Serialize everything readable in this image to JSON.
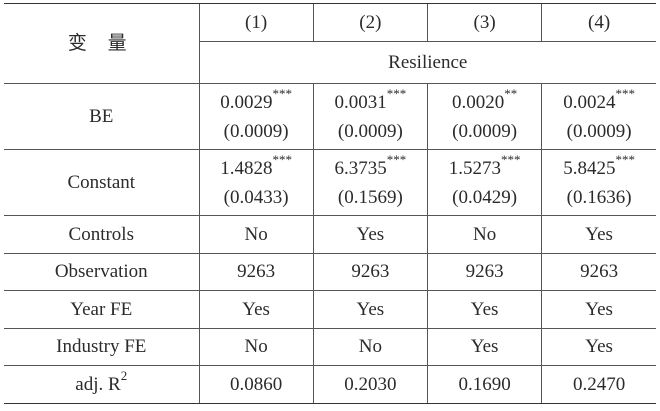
{
  "table": {
    "variable_header": "变 量",
    "column_numbers": [
      "(1)",
      "(2)",
      "(3)",
      "(4)"
    ],
    "dependent_variable": "Resilience",
    "rows": [
      {
        "label": "BE",
        "cells": [
          {
            "coef": "0.0029",
            "stars": "***",
            "se": "(0.0009)"
          },
          {
            "coef": "0.0031",
            "stars": "***",
            "se": "(0.0009)"
          },
          {
            "coef": "0.0020",
            "stars": "**",
            "se": "(0.0009)"
          },
          {
            "coef": "0.0024",
            "stars": "***",
            "se": "(0.0009)"
          }
        ]
      },
      {
        "label": "Constant",
        "cells": [
          {
            "coef": "1.4828",
            "stars": "***",
            "se": "(0.0433)"
          },
          {
            "coef": "6.3735",
            "stars": "***",
            "se": "(0.1569)"
          },
          {
            "coef": "1.5273",
            "stars": "***",
            "se": "(0.0429)"
          },
          {
            "coef": "5.8425",
            "stars": "***",
            "se": "(0.1636)"
          }
        ]
      }
    ],
    "simple_rows": [
      {
        "label": "Controls",
        "values": [
          "No",
          "Yes",
          "No",
          "Yes"
        ]
      },
      {
        "label": "Observation",
        "values": [
          "9263",
          "9263",
          "9263",
          "9263"
        ]
      },
      {
        "label": "Year FE",
        "values": [
          "Yes",
          "Yes",
          "Yes",
          "Yes"
        ]
      },
      {
        "label": "Industry FE",
        "values": [
          "No",
          "No",
          "Yes",
          "Yes"
        ]
      }
    ],
    "r2_label": "adj. R",
    "r2_superscript": "2",
    "r2_values": [
      "0.0860",
      "0.2030",
      "0.1690",
      "0.2470"
    ]
  }
}
